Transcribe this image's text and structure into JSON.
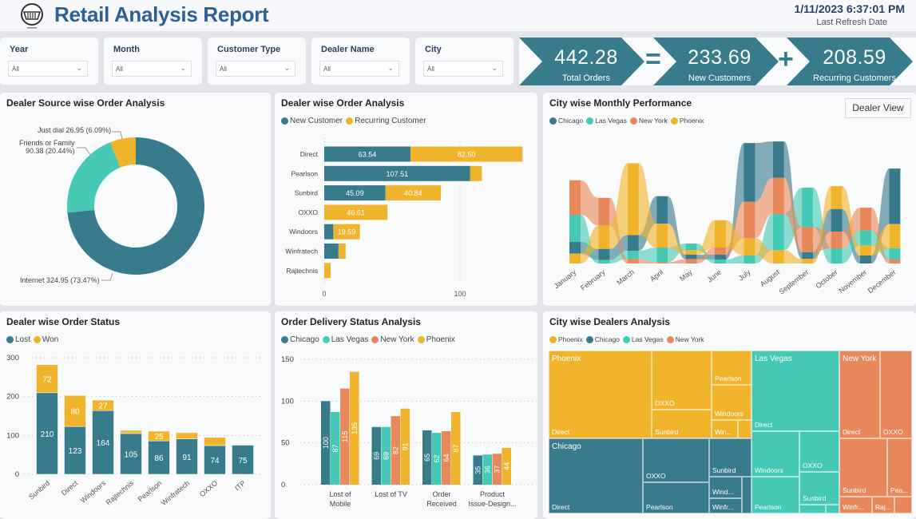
{
  "header": {
    "title": "Retail Analysis Report",
    "datetime": "1/11/2023 6:37:01 PM",
    "refresh_label": "Last Refresh Date"
  },
  "filters": [
    {
      "label": "Year",
      "value": "All"
    },
    {
      "label": "Month",
      "value": "All"
    },
    {
      "label": "Customer Type",
      "value": "All"
    },
    {
      "label": "Dealer Name",
      "value": "All"
    },
    {
      "label": "City",
      "value": "All"
    }
  ],
  "kpis": [
    {
      "value": "442.28",
      "label": "Total Orders"
    },
    {
      "value": "233.69",
      "label": "New Customers"
    },
    {
      "value": "208.59",
      "label": "Recurring Customers"
    }
  ],
  "operators": [
    "=",
    "+"
  ],
  "colors": {
    "chicago": "#377b8c",
    "las_vegas": "#45c8b4",
    "new_york": "#e8885a",
    "phoenix": "#f0b32c",
    "kpi": "#377b8c"
  },
  "chart_data": [
    {
      "type": "pie",
      "title": "Dealer Source wise Order Analysis",
      "slices": [
        {
          "name": "Internet",
          "value": "324.95",
          "pct": "(73.47%)",
          "share": 73.47,
          "color": "#377b8c"
        },
        {
          "name": "Friends or Family",
          "value": "90.38",
          "pct": "(20.44%)",
          "share": 20.44,
          "color": "#45c8b4"
        },
        {
          "name": "Just dial",
          "value": "26.95",
          "pct": "(6.09%)",
          "share": 6.09,
          "color": "#f0b32c"
        }
      ]
    },
    {
      "type": "bar",
      "orientation": "horizontal",
      "stacked": true,
      "title": "Dealer wise Order Analysis",
      "legend": [
        "New Customer",
        "Recurring Customer"
      ],
      "categories": [
        "Direct",
        "Pearlson",
        "Sunbird",
        "OXXO",
        "Windoors",
        "Winfratech",
        "Rajtechnis"
      ],
      "series": [
        {
          "name": "New Customer",
          "values": [
            63.54,
            107.51,
            45.09,
            0,
            6.7,
            10.5,
            0
          ]
        },
        {
          "name": "Recurring Customer",
          "values": [
            82.5,
            8.6,
            40.84,
            46.61,
            19.59,
            5.3,
            4.7
          ]
        }
      ],
      "xticks": [
        "0",
        "100"
      ]
    },
    {
      "type": "area",
      "subtype": "ribbon",
      "title": "City wise Monthly Performance",
      "button": "Dealer View",
      "legend": [
        "Chicago",
        "Las Vegas",
        "New York",
        "Phoenix"
      ],
      "categories": [
        "January",
        "February",
        "March",
        "April",
        "May",
        "June",
        "July",
        "August",
        "September",
        "October",
        "November",
        "December"
      ],
      "series": [
        {
          "name": "Chicago",
          "values": [
            4.5,
            4.2,
            5.9,
            10.3,
            1.7,
            1.8,
            22.1,
            13.7,
            2.6,
            8.5,
            3.0,
            20.9
          ]
        },
        {
          "name": "Las Vegas",
          "values": [
            10.1,
            1.3,
            3.1,
            5.5,
            2.5,
            1.5,
            3.0,
            13.6,
            14.8,
            5.7,
            5.7,
            4.3
          ]
        },
        {
          "name": "New York",
          "values": [
            13.0,
            10.4,
            1.7,
            0.5,
            1.6,
            2.7,
            13.7,
            13.6,
            9.4,
            6.3,
            8.5,
            1.5
          ]
        },
        {
          "name": "Phoenix",
          "values": [
            3.7,
            8.8,
            27.0,
            9.0,
            1.7,
            10.3,
            6.5,
            5.0,
            1.7,
            8.6,
            3.8,
            9.0
          ]
        }
      ]
    },
    {
      "type": "bar",
      "stacked": true,
      "title": "Dealer wise Order Status",
      "legend": [
        "Lost",
        "Won"
      ],
      "categories": [
        "Sunbird",
        "Direct",
        "Windoors",
        "Rajtechnis",
        "Pearlson",
        "Winfratech",
        "OXXO",
        "ITP"
      ],
      "series": [
        {
          "name": "Lost",
          "values": [
            210,
            123,
            164,
            105,
            86,
            91,
            74,
            75
          ]
        },
        {
          "name": "Won",
          "values": [
            72,
            80,
            27,
            8,
            25,
            16,
            21,
            0
          ]
        }
      ],
      "yticks": [
        "0",
        "100",
        "200",
        "300"
      ],
      "ylim": [
        0,
        300
      ]
    },
    {
      "type": "bar",
      "title": "Order Delivery Status Analysis",
      "legend": [
        "Chicago",
        "Las Vegas",
        "New York",
        "Phoenix"
      ],
      "categories": [
        [
          "Lost of",
          "Mobile"
        ],
        [
          "Lost of TV",
          ""
        ],
        [
          "Order",
          "Received"
        ],
        [
          "Product",
          "Issue-Design..."
        ]
      ],
      "series": [
        {
          "name": "Chicago",
          "values": [
            100,
            69,
            65,
            35
          ]
        },
        {
          "name": "Las Vegas",
          "values": [
            87,
            69,
            62,
            36
          ]
        },
        {
          "name": "New York",
          "values": [
            115,
            82,
            64,
            37
          ]
        },
        {
          "name": "Phoenix",
          "values": [
            135,
            91,
            87,
            44
          ]
        }
      ],
      "yticks": [
        "0",
        "50",
        "100",
        "150"
      ],
      "ylim": [
        0,
        150
      ]
    }
  ],
  "treemap": {
    "title": "City wise Dealers Analysis",
    "legend": [
      "Phoenix",
      "Chicago",
      "Las Vegas",
      "New York"
    ],
    "cities": [
      "Phoenix",
      "Chicago",
      "Las Vegas",
      "New York"
    ],
    "cells": [
      {
        "city": "Phoenix",
        "label": "Direct"
      },
      {
        "city": "Phoenix",
        "label": "OXXO"
      },
      {
        "city": "Phoenix",
        "label": "Sunbird"
      },
      {
        "city": "Phoenix",
        "label": "Pearlson"
      },
      {
        "city": "Phoenix",
        "label": "Windoors"
      },
      {
        "city": "Phoenix",
        "label": "Win..."
      },
      {
        "city": "Phoenix",
        "label": ""
      },
      {
        "city": "Chicago",
        "label": "Direct"
      },
      {
        "city": "Chicago",
        "label": "OXXO"
      },
      {
        "city": "Chicago",
        "label": "Pearlson"
      },
      {
        "city": "Chicago",
        "label": "Sunbird"
      },
      {
        "city": "Chicago",
        "label": "Wind..."
      },
      {
        "city": "Chicago",
        "label": "Winfr..."
      },
      {
        "city": "Chicago",
        "label": ""
      },
      {
        "city": "Las Vegas",
        "label": "Direct"
      },
      {
        "city": "Las Vegas",
        "label": "Windoors"
      },
      {
        "city": "Las Vegas",
        "label": "Pearlson"
      },
      {
        "city": "Las Vegas",
        "label": "OXXO"
      },
      {
        "city": "Las Vegas",
        "label": "Sunbird"
      },
      {
        "city": "Las Vegas",
        "label": ""
      },
      {
        "city": "Las Vegas",
        "label": ""
      },
      {
        "city": "New York",
        "label": "Direct"
      },
      {
        "city": "New York",
        "label": "OXXO"
      },
      {
        "city": "New York",
        "label": "Sunbird"
      },
      {
        "city": "New York",
        "label": "Pea..."
      },
      {
        "city": "New York",
        "label": "Winfr..."
      },
      {
        "city": "New York",
        "label": "Raj..."
      },
      {
        "city": "New York",
        "label": ""
      }
    ]
  }
}
